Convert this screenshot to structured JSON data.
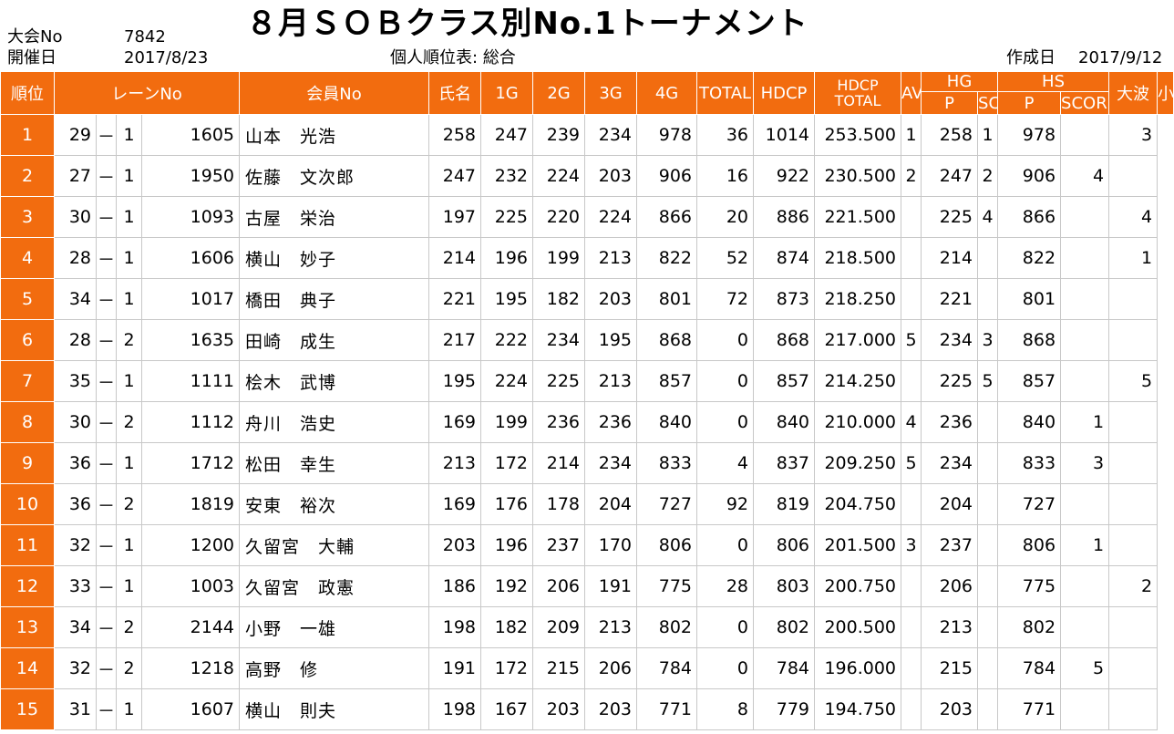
{
  "header": {
    "title": "８月ＳＯＢクラス別No.1トーナメント",
    "tournament_no_label": "大会No",
    "tournament_no": "7842",
    "date_label": "開催日",
    "date": "2017/8/23",
    "table_caption": "個人順位表: 総合",
    "created_label": "作成日",
    "created_date": "2017/9/12"
  },
  "columns": {
    "rank": "順位",
    "lane": "レーンNo",
    "member_no": "会員No",
    "name": "氏名",
    "g1": "1G",
    "g2": "2G",
    "g3": "3G",
    "g4": "4G",
    "total": "TOTAL",
    "hdcp": "HDCP",
    "hdcp_total_1": "HDCP",
    "hdcp_total_2": "TOTAL",
    "average": "AVERAGE",
    "hg": "HG",
    "hs": "HS",
    "hg_p": "P",
    "hg_score": "SCORE",
    "hs_p": "P",
    "hs_score": "SCORE",
    "big_wave": "大波",
    "small_wave": "小波"
  },
  "rows": [
    {
      "rank": "1",
      "lane": "29",
      "dash": "－",
      "lane_sub": "1",
      "member_no": "1605",
      "name": "山本　光浩",
      "g1": "258",
      "g2": "247",
      "g3": "239",
      "g4": "234",
      "total": "978",
      "hdcp": "36",
      "hdcp_total": "1014",
      "average": "253.500",
      "hg_p": "1",
      "hg_score": "258",
      "hs_p": "1",
      "hs_score": "978",
      "big_wave": "",
      "small_wave": "3"
    },
    {
      "rank": "2",
      "lane": "27",
      "dash": "－",
      "lane_sub": "1",
      "member_no": "1950",
      "name": "佐藤　文次郎",
      "g1": "247",
      "g2": "232",
      "g3": "224",
      "g4": "203",
      "total": "906",
      "hdcp": "16",
      "hdcp_total": "922",
      "average": "230.500",
      "hg_p": "2",
      "hg_score": "247",
      "hs_p": "2",
      "hs_score": "906",
      "big_wave": "4",
      "small_wave": ""
    },
    {
      "rank": "3",
      "lane": "30",
      "dash": "－",
      "lane_sub": "1",
      "member_no": "1093",
      "name": "古屋　栄治",
      "g1": "197",
      "g2": "225",
      "g3": "220",
      "g4": "224",
      "total": "866",
      "hdcp": "20",
      "hdcp_total": "886",
      "average": "221.500",
      "hg_p": "",
      "hg_score": "225",
      "hs_p": "4",
      "hs_score": "866",
      "big_wave": "",
      "small_wave": "4"
    },
    {
      "rank": "4",
      "lane": "28",
      "dash": "－",
      "lane_sub": "1",
      "member_no": "1606",
      "name": "横山　妙子",
      "g1": "214",
      "g2": "196",
      "g3": "199",
      "g4": "213",
      "total": "822",
      "hdcp": "52",
      "hdcp_total": "874",
      "average": "218.500",
      "hg_p": "",
      "hg_score": "214",
      "hs_p": "",
      "hs_score": "822",
      "big_wave": "",
      "small_wave": "1"
    },
    {
      "rank": "5",
      "lane": "34",
      "dash": "－",
      "lane_sub": "1",
      "member_no": "1017",
      "name": "橋田　典子",
      "g1": "221",
      "g2": "195",
      "g3": "182",
      "g4": "203",
      "total": "801",
      "hdcp": "72",
      "hdcp_total": "873",
      "average": "218.250",
      "hg_p": "",
      "hg_score": "221",
      "hs_p": "",
      "hs_score": "801",
      "big_wave": "",
      "small_wave": ""
    },
    {
      "rank": "6",
      "lane": "28",
      "dash": "－",
      "lane_sub": "2",
      "member_no": "1635",
      "name": "田崎　成生",
      "g1": "217",
      "g2": "222",
      "g3": "234",
      "g4": "195",
      "total": "868",
      "hdcp": "0",
      "hdcp_total": "868",
      "average": "217.000",
      "hg_p": "5",
      "hg_score": "234",
      "hs_p": "3",
      "hs_score": "868",
      "big_wave": "",
      "small_wave": ""
    },
    {
      "rank": "7",
      "lane": "35",
      "dash": "－",
      "lane_sub": "1",
      "member_no": "1111",
      "name": "桧木　武博",
      "g1": "195",
      "g2": "224",
      "g3": "225",
      "g4": "213",
      "total": "857",
      "hdcp": "0",
      "hdcp_total": "857",
      "average": "214.250",
      "hg_p": "",
      "hg_score": "225",
      "hs_p": "5",
      "hs_score": "857",
      "big_wave": "",
      "small_wave": "5"
    },
    {
      "rank": "8",
      "lane": "30",
      "dash": "－",
      "lane_sub": "2",
      "member_no": "1112",
      "name": "舟川　浩史",
      "g1": "169",
      "g2": "199",
      "g3": "236",
      "g4": "236",
      "total": "840",
      "hdcp": "0",
      "hdcp_total": "840",
      "average": "210.000",
      "hg_p": "4",
      "hg_score": "236",
      "hs_p": "",
      "hs_score": "840",
      "big_wave": "1",
      "small_wave": ""
    },
    {
      "rank": "9",
      "lane": "36",
      "dash": "－",
      "lane_sub": "1",
      "member_no": "1712",
      "name": "松田　幸生",
      "g1": "213",
      "g2": "172",
      "g3": "214",
      "g4": "234",
      "total": "833",
      "hdcp": "4",
      "hdcp_total": "837",
      "average": "209.250",
      "hg_p": "5",
      "hg_score": "234",
      "hs_p": "",
      "hs_score": "833",
      "big_wave": "3",
      "small_wave": ""
    },
    {
      "rank": "10",
      "lane": "36",
      "dash": "－",
      "lane_sub": "2",
      "member_no": "1819",
      "name": "安東　裕次",
      "g1": "169",
      "g2": "176",
      "g3": "178",
      "g4": "204",
      "total": "727",
      "hdcp": "92",
      "hdcp_total": "819",
      "average": "204.750",
      "hg_p": "",
      "hg_score": "204",
      "hs_p": "",
      "hs_score": "727",
      "big_wave": "",
      "small_wave": ""
    },
    {
      "rank": "11",
      "lane": "32",
      "dash": "－",
      "lane_sub": "1",
      "member_no": "1200",
      "name": "久留宮　大輔",
      "g1": "203",
      "g2": "196",
      "g3": "237",
      "g4": "170",
      "total": "806",
      "hdcp": "0",
      "hdcp_total": "806",
      "average": "201.500",
      "hg_p": "3",
      "hg_score": "237",
      "hs_p": "",
      "hs_score": "806",
      "big_wave": "1",
      "small_wave": ""
    },
    {
      "rank": "12",
      "lane": "33",
      "dash": "－",
      "lane_sub": "1",
      "member_no": "1003",
      "name": "久留宮　政憲",
      "g1": "186",
      "g2": "192",
      "g3": "206",
      "g4": "191",
      "total": "775",
      "hdcp": "28",
      "hdcp_total": "803",
      "average": "200.750",
      "hg_p": "",
      "hg_score": "206",
      "hs_p": "",
      "hs_score": "775",
      "big_wave": "",
      "small_wave": "2"
    },
    {
      "rank": "13",
      "lane": "34",
      "dash": "－",
      "lane_sub": "2",
      "member_no": "2144",
      "name": "小野　一雄",
      "g1": "198",
      "g2": "182",
      "g3": "209",
      "g4": "213",
      "total": "802",
      "hdcp": "0",
      "hdcp_total": "802",
      "average": "200.500",
      "hg_p": "",
      "hg_score": "213",
      "hs_p": "",
      "hs_score": "802",
      "big_wave": "",
      "small_wave": ""
    },
    {
      "rank": "14",
      "lane": "32",
      "dash": "－",
      "lane_sub": "2",
      "member_no": "1218",
      "name": "高野　修",
      "g1": "191",
      "g2": "172",
      "g3": "215",
      "g4": "206",
      "total": "784",
      "hdcp": "0",
      "hdcp_total": "784",
      "average": "196.000",
      "hg_p": "",
      "hg_score": "215",
      "hs_p": "",
      "hs_score": "784",
      "big_wave": "5",
      "small_wave": ""
    },
    {
      "rank": "15",
      "lane": "31",
      "dash": "－",
      "lane_sub": "1",
      "member_no": "1607",
      "name": "横山　則夫",
      "g1": "198",
      "g2": "167",
      "g3": "203",
      "g4": "203",
      "total": "771",
      "hdcp": "8",
      "hdcp_total": "779",
      "average": "194.750",
      "hg_p": "",
      "hg_score": "203",
      "hs_p": "",
      "hs_score": "771",
      "big_wave": "",
      "small_wave": ""
    }
  ],
  "colors": {
    "accent_orange": "#f26c0f",
    "grid": "#c8c8c8"
  }
}
